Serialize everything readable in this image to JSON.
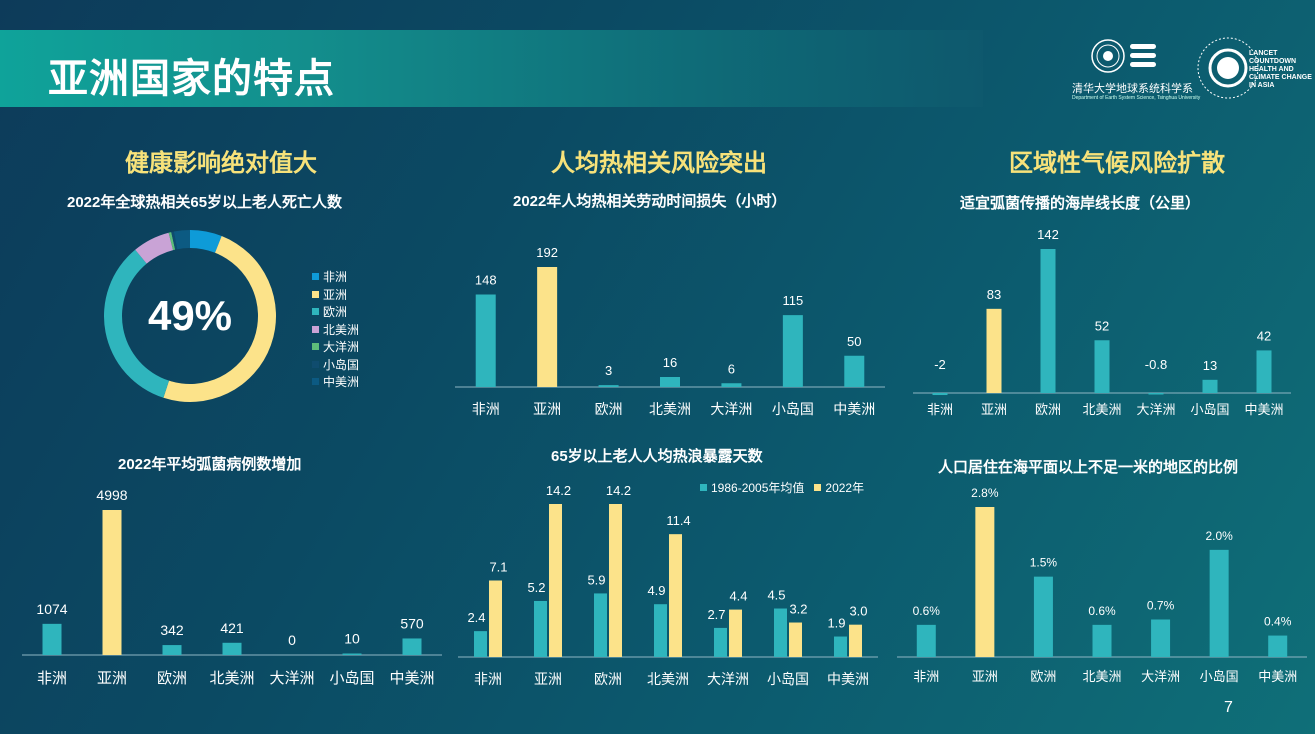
{
  "slide": {
    "title": "亚洲国家的特点",
    "page_number": "7"
  },
  "logos": {
    "tsinghua_text": "清华大学地球系统科学系",
    "tsinghua_sub": "Department of Earth System Science, Tsinghua University",
    "lancet_text": "LANCET COUNTDOWN HEALTH AND CLIMATE CHANGE IN ASIA"
  },
  "sections": [
    {
      "title": "健康影响绝对值大"
    },
    {
      "title": "人均热相关风险突出"
    },
    {
      "title": "区域性气候风险扩散"
    }
  ],
  "colors": {
    "teal": "#2fb5bd",
    "yellow": "#fce38a"
  },
  "chart_data": [
    {
      "type": "pie",
      "title": "2022年全球热相关65岁以上老人死亡人数",
      "center_label": "49%",
      "categories": [
        "非洲",
        "亚洲",
        "欧洲",
        "北美洲",
        "大洋洲",
        "小岛国",
        "中美洲"
      ],
      "values": [
        6,
        49,
        34,
        7,
        0.5,
        0.5,
        3
      ],
      "colors": [
        "#0e9bd8",
        "#fce38a",
        "#2fb5bd",
        "#c9a3d6",
        "#5dbe7a",
        "#0f4c6e",
        "#0c5a82"
      ],
      "legend": "right"
    },
    {
      "type": "bar",
      "title": "2022年人均热相关劳动时间损失（小时）",
      "categories": [
        "非洲",
        "亚洲",
        "欧洲",
        "北美洲",
        "大洋洲",
        "小岛国",
        "中美洲"
      ],
      "values": [
        148,
        192,
        3,
        16,
        6,
        115,
        50
      ],
      "value_labels": [
        "148",
        "192",
        "3",
        "16",
        "6",
        "115",
        "50"
      ],
      "highlight": "亚洲"
    },
    {
      "type": "bar",
      "title": "适宜弧菌传播的海岸线长度（公里）",
      "categories": [
        "非洲",
        "亚洲",
        "欧洲",
        "北美洲",
        "大洋洲",
        "小岛国",
        "中美洲"
      ],
      "values": [
        -2,
        83,
        142,
        52,
        -0.8,
        13,
        42
      ],
      "value_labels": [
        "-2",
        "83",
        "142",
        "52",
        "-0.8",
        "13",
        "42"
      ],
      "highlight": "亚洲"
    },
    {
      "type": "bar",
      "title": "2022年平均弧菌病例数增加",
      "categories": [
        "非洲",
        "亚洲",
        "欧洲",
        "北美洲",
        "大洋洲",
        "小岛国",
        "中美洲"
      ],
      "values": [
        1074,
        4998,
        342,
        421,
        0,
        10,
        570
      ],
      "value_labels": [
        "1074",
        "4998",
        "342",
        "421",
        "0",
        "10",
        "570"
      ],
      "highlight": "亚洲"
    },
    {
      "type": "bar",
      "title": "65岁以上老人人均热浪暴露天数",
      "categories": [
        "非洲",
        "亚洲",
        "欧洲",
        "北美洲",
        "大洋洲",
        "小岛国",
        "中美洲"
      ],
      "series": [
        {
          "name": "1986-2005年均值",
          "values": [
            2.4,
            5.2,
            5.9,
            4.9,
            2.7,
            4.5,
            1.9
          ],
          "labels": [
            "2.4",
            "5.2",
            "5.9",
            "4.9",
            "2.7",
            "4.5",
            "1.9"
          ]
        },
        {
          "name": "2022年",
          "values": [
            7.1,
            14.2,
            14.2,
            11.4,
            4.4,
            3.2,
            3.0
          ],
          "labels": [
            "7.1",
            "14.2",
            "14.2",
            "11.4",
            "4.4",
            "3.2",
            "3.0"
          ]
        }
      ],
      "legend": "top-right"
    },
    {
      "type": "bar",
      "title": "人口居住在海平面以上不足一米的地区的比例",
      "categories": [
        "非洲",
        "亚洲",
        "欧洲",
        "北美洲",
        "大洋洲",
        "小岛国",
        "中美洲"
      ],
      "values": [
        0.6,
        2.8,
        1.5,
        0.6,
        0.7,
        2.0,
        0.4
      ],
      "value_labels": [
        "0.6%",
        "2.8%",
        "1.5%",
        "0.6%",
        "0.7%",
        "2.0%",
        "0.4%"
      ],
      "highlight": "亚洲"
    }
  ]
}
